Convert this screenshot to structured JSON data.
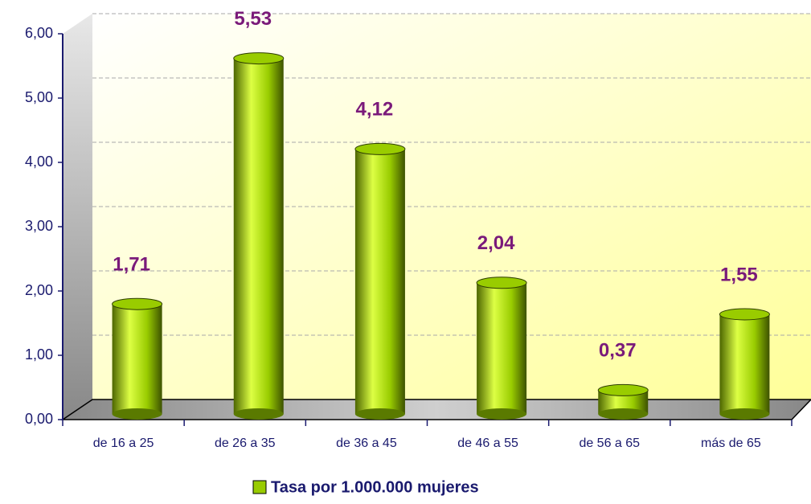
{
  "chart_data": {
    "type": "bar",
    "categories": [
      "de 16 a 25",
      "de 26 a 35",
      "de 36 a 45",
      "de 46 a 55",
      "de 56 a 65",
      "más de 65"
    ],
    "series": [
      {
        "name": "Tasa por 1.000.000 mujeres",
        "color": "#99cc00",
        "values": [
          1.71,
          5.53,
          4.12,
          2.04,
          0.37,
          1.55
        ],
        "value_labels": [
          "1,71",
          "5,53",
          "4,12",
          "2,04",
          "0,37",
          "1,55"
        ]
      }
    ],
    "ylim": [
      0,
      6
    ],
    "yticks": [
      {
        "value": 0,
        "label": "0,00"
      },
      {
        "value": 1,
        "label": "1,00"
      },
      {
        "value": 2,
        "label": "2,00"
      },
      {
        "value": 3,
        "label": "3,00"
      },
      {
        "value": 4,
        "label": "4,00"
      },
      {
        "value": 5,
        "label": "5,00"
      },
      {
        "value": 6,
        "label": "6,00"
      }
    ],
    "grid": true,
    "legend": "bottom"
  }
}
